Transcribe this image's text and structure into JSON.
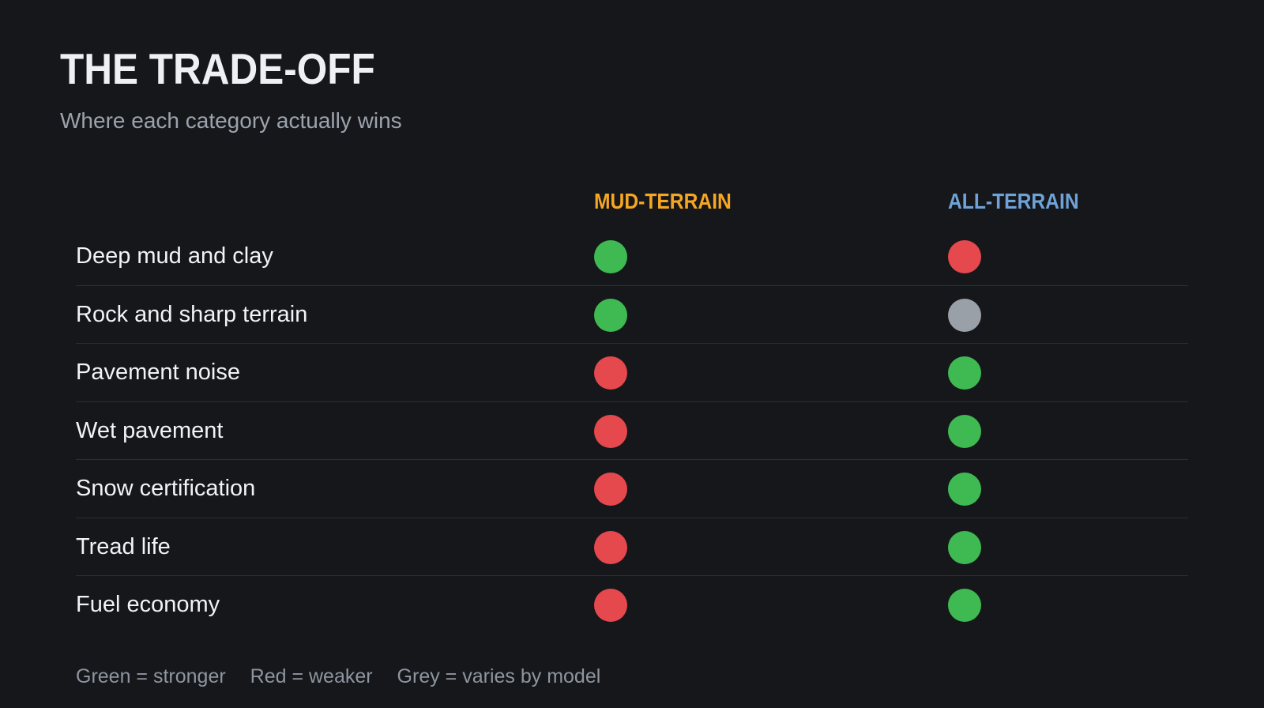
{
  "title": "THE TRADE-OFF",
  "subtitle": "Where each category actually wins",
  "columns": [
    {
      "label": "MUD-TERRAIN",
      "color": "#f5a623"
    },
    {
      "label": "ALL-TERRAIN",
      "color": "#6fa3d8"
    }
  ],
  "status_colors": {
    "stronger": "#3fba52",
    "weaker": "#e5484d",
    "varies": "#9aa0a8"
  },
  "rows": [
    {
      "label": "Deep mud and clay",
      "mud_terrain": "stronger",
      "all_terrain": "weaker"
    },
    {
      "label": "Rock and sharp terrain",
      "mud_terrain": "stronger",
      "all_terrain": "varies"
    },
    {
      "label": "Pavement noise",
      "mud_terrain": "weaker",
      "all_terrain": "stronger"
    },
    {
      "label": "Wet pavement",
      "mud_terrain": "weaker",
      "all_terrain": "stronger"
    },
    {
      "label": "Snow certification",
      "mud_terrain": "weaker",
      "all_terrain": "stronger"
    },
    {
      "label": "Tread life",
      "mud_terrain": "weaker",
      "all_terrain": "stronger"
    },
    {
      "label": "Fuel economy",
      "mud_terrain": "weaker",
      "all_terrain": "stronger"
    }
  ],
  "legend": {
    "green": "Green = stronger",
    "red": "Red = weaker",
    "grey": "Grey = varies by model"
  }
}
